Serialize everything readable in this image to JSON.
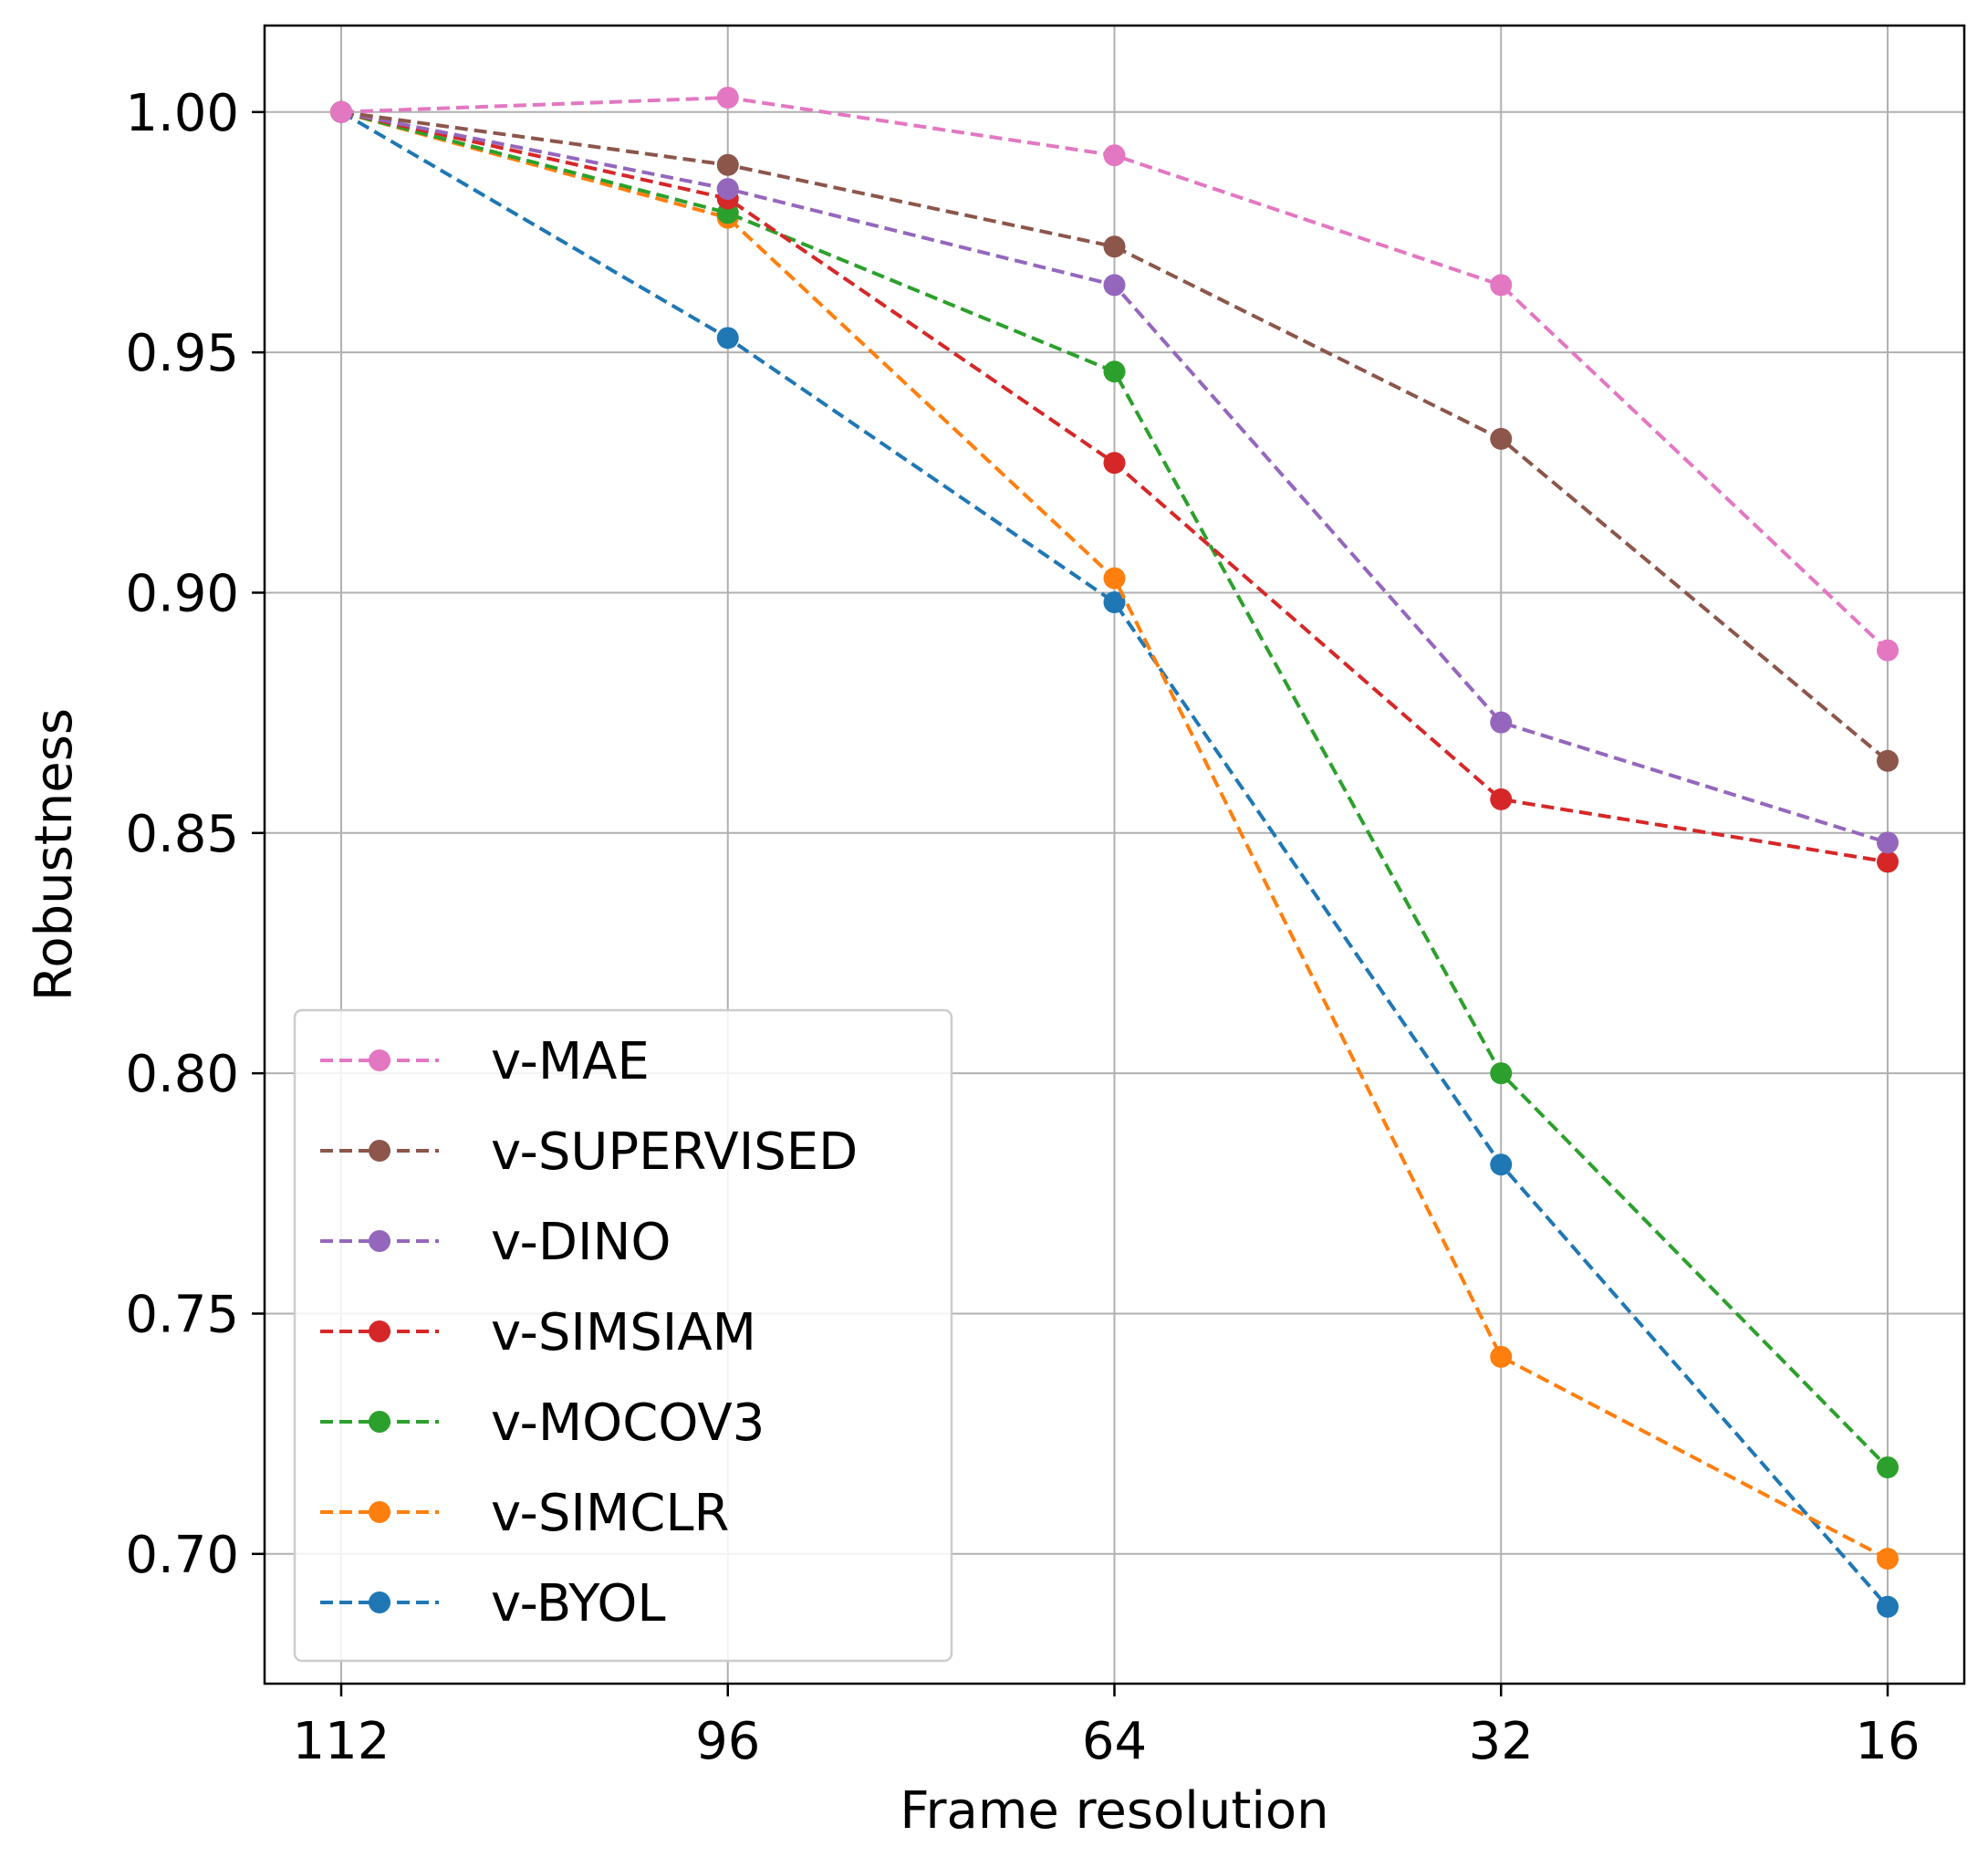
{
  "chart_data": {
    "type": "line",
    "title": "",
    "xlabel": "Frame resolution",
    "ylabel": "Robustness",
    "categories": [
      "112",
      "96",
      "64",
      "32",
      "16"
    ],
    "ylim": [
      0.673,
      1.018
    ],
    "yticks": [
      "0.70",
      "0.75",
      "0.80",
      "0.85",
      "0.90",
      "0.95",
      "1.00"
    ],
    "ytick_values": [
      0.7,
      0.75,
      0.8,
      0.85,
      0.9,
      0.95,
      1.0
    ],
    "grid": true,
    "legend_position": "lower-left",
    "line_style": "dashed",
    "marker": "circle",
    "series": [
      {
        "name": "v-MAE",
        "color": "#e377c2",
        "values": [
          1.0,
          1.003,
          0.991,
          0.964,
          0.888
        ]
      },
      {
        "name": "v-SUPERVISED",
        "color": "#8c564b",
        "values": [
          1.0,
          0.989,
          0.972,
          0.932,
          0.865
        ]
      },
      {
        "name": "v-DINO",
        "color": "#9467bd",
        "values": [
          1.0,
          0.984,
          0.964,
          0.873,
          0.848
        ]
      },
      {
        "name": "v-SIMSIAM",
        "color": "#d62728",
        "values": [
          1.0,
          0.982,
          0.927,
          0.857,
          0.844
        ]
      },
      {
        "name": "v-MOCOV3",
        "color": "#2ca02c",
        "values": [
          1.0,
          0.979,
          0.946,
          0.8,
          0.718
        ]
      },
      {
        "name": "v-SIMCLR",
        "color": "#ff7f0e",
        "values": [
          1.0,
          0.978,
          0.903,
          0.741,
          0.699
        ]
      },
      {
        "name": "v-BYOL",
        "color": "#1f77b4",
        "values": [
          1.0,
          0.953,
          0.898,
          0.781,
          0.689
        ]
      }
    ]
  }
}
